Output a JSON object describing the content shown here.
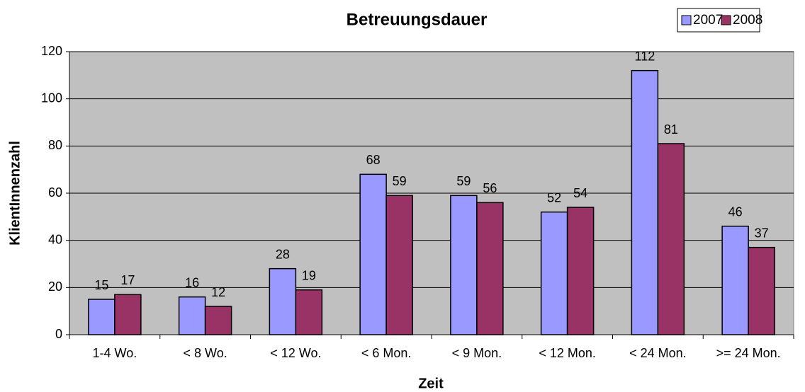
{
  "chart_data": {
    "type": "bar",
    "title": "Betreuungsdauer",
    "x_label": "Zeit",
    "y_label": "KlientInnenzahl",
    "categories": [
      "1-4 Wo.",
      "< 8 Wo.",
      "< 12 Wo.",
      "< 6 Mon.",
      "< 9 Mon.",
      "< 12 Mon.",
      "< 24 Mon.",
      ">= 24 Mon."
    ],
    "series": [
      {
        "name": "2007",
        "color": "#9999ff",
        "values": [
          15,
          16,
          28,
          68,
          59,
          52,
          112,
          46
        ]
      },
      {
        "name": "2008",
        "color": "#993366",
        "values": [
          17,
          12,
          19,
          59,
          56,
          54,
          81,
          37
        ]
      }
    ],
    "ylim": [
      0,
      120
    ],
    "yticks": [
      0,
      20,
      40,
      60,
      80,
      100,
      120
    ],
    "grid": true,
    "legend": "top-right"
  }
}
